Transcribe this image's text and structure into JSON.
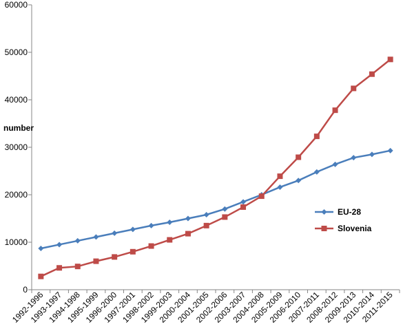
{
  "chart_data": {
    "type": "line",
    "title": "",
    "xlabel": "",
    "ylabel": "number",
    "ylim": [
      0,
      60000
    ],
    "yticks": [
      0,
      10000,
      20000,
      30000,
      40000,
      50000,
      60000
    ],
    "grid": false,
    "legend_position": "right",
    "categories": [
      "1992-1996",
      "1993-1997",
      "1994-1998",
      "1995-1999",
      "1996-2000",
      "1997-2001",
      "1998-2002",
      "1999-2003",
      "2000-2004",
      "2001-2005",
      "2002-2006",
      "2003-2007",
      "2004-2008",
      "2005-2009",
      "2006-2010",
      "2007-2011",
      "2008-2012",
      "2009-2013",
      "2010-2014",
      "2011-2015"
    ],
    "series": [
      {
        "name": "EU-28",
        "color": "#4a7ebb",
        "marker": "diamond",
        "values": [
          8700,
          9500,
          10300,
          11100,
          11900,
          12700,
          13500,
          14200,
          15000,
          15800,
          17000,
          18500,
          20000,
          21600,
          23000,
          24800,
          26400,
          27800,
          28500,
          29300
        ]
      },
      {
        "name": "Slovenia",
        "color": "#be4b48",
        "marker": "square",
        "values": [
          2800,
          4600,
          4900,
          6000,
          6900,
          8000,
          9200,
          10500,
          11800,
          13500,
          15300,
          17400,
          19700,
          23900,
          27900,
          32300,
          37800,
          42400,
          45400,
          48500
        ]
      }
    ]
  }
}
